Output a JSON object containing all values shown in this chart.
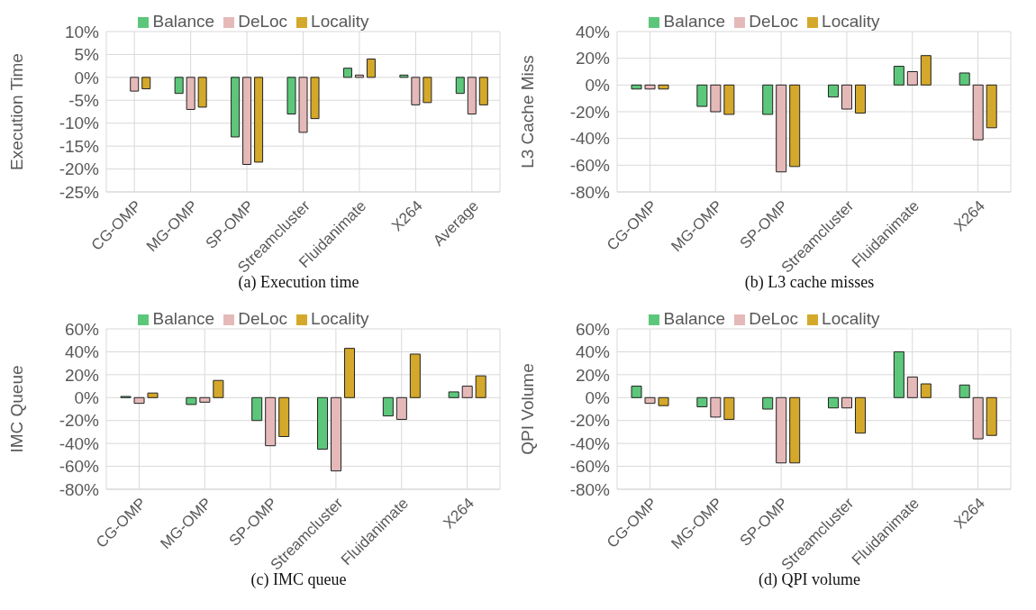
{
  "chart_data": [
    {
      "type": "bar",
      "title": "(a) Execution time",
      "ylabel": "Execution Time",
      "categories": [
        "CG-OMP",
        "MG-OMP",
        "SP-OMP",
        "Streamcluster",
        "Fluidanimate",
        "X264",
        "Average"
      ],
      "series": [
        {
          "name": "Balance",
          "color": "#5cc77a",
          "values": [
            0,
            -3.5,
            -13,
            -8,
            2,
            0.5,
            -3.5
          ]
        },
        {
          "name": "DeLoc",
          "color": "#e6b9b9",
          "values": [
            -3,
            -7,
            -19,
            -12,
            0.5,
            -6,
            -8
          ]
        },
        {
          "name": "Locality",
          "color": "#d4a82a",
          "values": [
            -2.5,
            -6.5,
            -18.5,
            -9,
            4,
            -5.5,
            -6
          ]
        }
      ],
      "ylim": [
        -25,
        10
      ],
      "yticks": [
        {
          "value": -25,
          "label": "-25%"
        },
        {
          "value": -20,
          "label": "-20%"
        },
        {
          "value": -15,
          "label": "-15%"
        },
        {
          "value": -10,
          "label": "-10%"
        },
        {
          "value": -5,
          "label": "-5%"
        },
        {
          "value": 0,
          "label": "0%"
        },
        {
          "value": 5,
          "label": "5%"
        },
        {
          "value": 10,
          "label": "10%"
        }
      ],
      "grid": true,
      "legend": "top"
    },
    {
      "type": "bar",
      "title": "(b) L3 cache misses",
      "ylabel": "L3 Cache Miss",
      "categories": [
        "CG-OMP",
        "MG-OMP",
        "SP-OMP",
        "Streamcluster",
        "Fluidanimate",
        "X264"
      ],
      "series": [
        {
          "name": "Balance",
          "color": "#5cc77a",
          "values": [
            -3,
            -16,
            -22,
            -9,
            14,
            9
          ]
        },
        {
          "name": "DeLoc",
          "color": "#e6b9b9",
          "values": [
            -3,
            -20,
            -65,
            -18,
            10,
            -41
          ]
        },
        {
          "name": "Locality",
          "color": "#d4a82a",
          "values": [
            -3,
            -22,
            -61,
            -21,
            22,
            -32
          ]
        }
      ],
      "ylim": [
        -80,
        40
      ],
      "yticks": [
        {
          "value": -80,
          "label": "-80%"
        },
        {
          "value": -60,
          "label": "-60%"
        },
        {
          "value": -40,
          "label": "-40%"
        },
        {
          "value": -20,
          "label": "-20%"
        },
        {
          "value": 0,
          "label": "0%"
        },
        {
          "value": 20,
          "label": "20%"
        },
        {
          "value": 40,
          "label": "40%"
        }
      ],
      "grid": true,
      "legend": "top"
    },
    {
      "type": "bar",
      "title": "(c) IMC queue",
      "ylabel": "IMC Queue",
      "categories": [
        "CG-OMP",
        "MG-OMP",
        "SP-OMP",
        "Streamcluster",
        "Fluidanimate",
        "X264"
      ],
      "series": [
        {
          "name": "Balance",
          "color": "#5cc77a",
          "values": [
            1,
            -6,
            -20,
            -45,
            -16,
            5
          ]
        },
        {
          "name": "DeLoc",
          "color": "#e6b9b9",
          "values": [
            -5,
            -4,
            -42,
            -64,
            -19,
            10
          ]
        },
        {
          "name": "Locality",
          "color": "#d4a82a",
          "values": [
            4,
            15,
            -34,
            43,
            38,
            19
          ]
        }
      ],
      "ylim": [
        -80,
        60
      ],
      "yticks": [
        {
          "value": -80,
          "label": "-80%"
        },
        {
          "value": -60,
          "label": "-60%"
        },
        {
          "value": -40,
          "label": "-40%"
        },
        {
          "value": -20,
          "label": "-20%"
        },
        {
          "value": 0,
          "label": "0%"
        },
        {
          "value": 20,
          "label": "20%"
        },
        {
          "value": 40,
          "label": "40%"
        },
        {
          "value": 60,
          "label": "60%"
        }
      ],
      "grid": true,
      "legend": "top"
    },
    {
      "type": "bar",
      "title": "(d) QPI volume",
      "ylabel": "QPI Volume",
      "categories": [
        "CG-OMP",
        "MG-OMP",
        "SP-OMP",
        "Streamcluster",
        "Fluidanimate",
        "X264"
      ],
      "series": [
        {
          "name": "Balance",
          "color": "#5cc77a",
          "values": [
            10,
            -8,
            -10,
            -9,
            40,
            11
          ]
        },
        {
          "name": "DeLoc",
          "color": "#e6b9b9",
          "values": [
            -5,
            -17,
            -57,
            -9,
            18,
            -36
          ]
        },
        {
          "name": "Locality",
          "color": "#d4a82a",
          "values": [
            -7,
            -19,
            -57,
            -31,
            12,
            -33
          ]
        }
      ],
      "ylim": [
        -80,
        60
      ],
      "yticks": [
        {
          "value": -80,
          "label": "-80%"
        },
        {
          "value": -60,
          "label": "-60%"
        },
        {
          "value": -40,
          "label": "-40%"
        },
        {
          "value": -20,
          "label": "-20%"
        },
        {
          "value": 0,
          "label": "0%"
        },
        {
          "value": 20,
          "label": "20%"
        },
        {
          "value": 40,
          "label": "40%"
        },
        {
          "value": 60,
          "label": "60%"
        }
      ],
      "grid": true,
      "legend": "top"
    }
  ]
}
